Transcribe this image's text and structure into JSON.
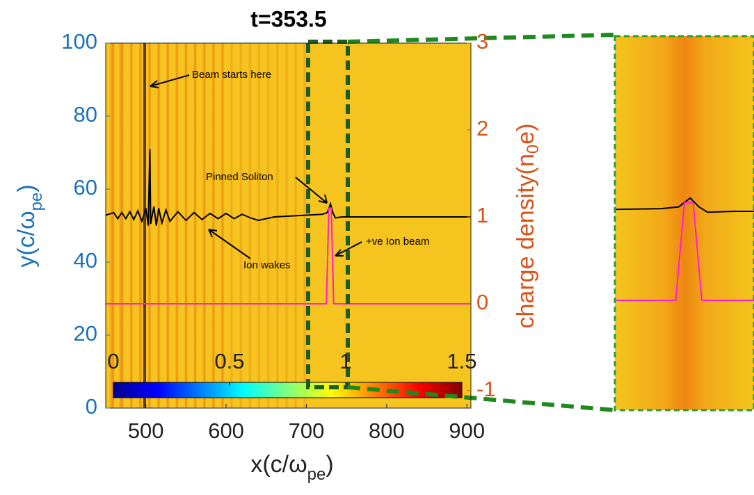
{
  "chart_data": {
    "type": "line",
    "title": "t=353.5",
    "xlabel": {
      "main": "x(c/ω",
      "sub": "pe",
      "end": ")"
    },
    "ylabel": {
      "main": "y(c/ω",
      "sub": "pe",
      "end": ")"
    },
    "y2label": {
      "main": "charge density(n",
      "sub": "0",
      "end": "e)"
    },
    "xlim": [
      450,
      905
    ],
    "xticks": [
      500,
      600,
      700,
      800,
      900
    ],
    "ylim": [
      0,
      100
    ],
    "yticks": [
      0,
      20,
      40,
      60,
      80,
      100
    ],
    "y2lim": [
      -1.2,
      3
    ],
    "y2ticks": [
      -1,
      0,
      1,
      2,
      3
    ],
    "colorbar": {
      "lim": [
        0,
        1.5
      ],
      "ticks": [
        0,
        0.5,
        1,
        1.5
      ]
    },
    "annotations": [
      "Beam starts here",
      "Pinned Soliton",
      "Ion wakes",
      "+ve Ion beam"
    ],
    "series": [
      {
        "name": "charge density",
        "color": "#000000",
        "axis": "y2",
        "x": [
          450,
          460,
          465,
          470,
          475,
          480,
          485,
          490,
          495,
          500,
          503,
          505,
          506,
          510,
          513,
          516,
          520,
          525,
          530,
          540,
          550,
          560,
          570,
          580,
          590,
          600,
          610,
          620,
          630,
          640,
          650,
          660,
          680,
          700,
          720,
          726,
          730,
          733,
          736,
          745,
          780,
          820,
          860,
          905
        ],
        "values": [
          1.02,
          1.05,
          0.98,
          1.05,
          0.98,
          1.06,
          0.97,
          1.07,
          0.95,
          1.1,
          0.9,
          1.78,
          0.92,
          1.12,
          0.9,
          1.1,
          0.93,
          1.08,
          0.95,
          1.06,
          0.96,
          1.05,
          0.97,
          1.04,
          0.98,
          1.04,
          0.98,
          1.03,
          0.99,
          0.96,
          0.98,
          1.0,
          1.01,
          1.02,
          1.03,
          1.05,
          1.15,
          1.05,
          0.99,
          1.0,
          1.0,
          1.0,
          1.0,
          1.0
        ]
      },
      {
        "name": "ion beam",
        "color": "#ff1fd0",
        "axis": "y2",
        "x": [
          450,
          725,
          728,
          731,
          734,
          905
        ],
        "values": [
          0,
          0,
          1.1,
          1.1,
          0,
          0
        ]
      }
    ]
  }
}
